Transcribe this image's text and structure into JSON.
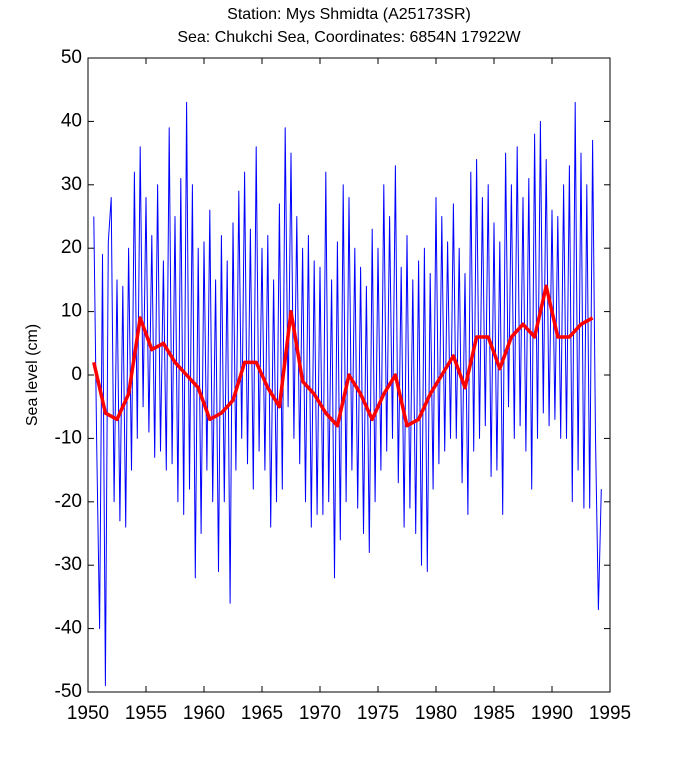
{
  "chart_data": {
    "type": "line",
    "title": "Station: Mys Shmidta (A25173SR)",
    "subtitle": "Sea: Chukchi Sea, Coordinates: 6854N 17922W",
    "y_label": "Sea level (cm)",
    "xlim": [
      1950,
      1995
    ],
    "xticks": [
      1950,
      1955,
      1960,
      1965,
      1970,
      1975,
      1980,
      1985,
      1990,
      1995
    ],
    "ylim": [
      -50,
      50
    ],
    "yticks": [
      -50,
      -40,
      -30,
      -20,
      -10,
      0,
      10,
      20,
      30,
      40,
      50
    ],
    "grid": false,
    "series": [
      {
        "color": "#0000ff",
        "width": 1,
        "x": [
          1950.5,
          1950.75,
          1951,
          1951.25,
          1951.5,
          1951.75,
          1952,
          1952.25,
          1952.5,
          1952.75,
          1953,
          1953.25,
          1953.5,
          1953.75,
          1954,
          1954.25,
          1954.5,
          1954.75,
          1955,
          1955.25,
          1955.5,
          1955.75,
          1956,
          1956.25,
          1956.5,
          1956.75,
          1957,
          1957.25,
          1957.5,
          1957.75,
          1958,
          1958.25,
          1958.5,
          1958.75,
          1959,
          1959.25,
          1959.5,
          1959.75,
          1960,
          1960.25,
          1960.5,
          1960.75,
          1961,
          1961.25,
          1961.5,
          1961.75,
          1962,
          1962.25,
          1962.5,
          1962.75,
          1963,
          1963.25,
          1963.5,
          1963.75,
          1964,
          1964.25,
          1964.5,
          1964.75,
          1965,
          1965.25,
          1965.5,
          1965.75,
          1966,
          1966.25,
          1966.5,
          1966.75,
          1967,
          1967.25,
          1967.5,
          1967.75,
          1968,
          1968.25,
          1968.5,
          1968.75,
          1969,
          1969.25,
          1969.5,
          1969.75,
          1970,
          1970.25,
          1970.5,
          1970.75,
          1971,
          1971.25,
          1971.5,
          1971.75,
          1972,
          1972.25,
          1972.5,
          1972.75,
          1973,
          1973.25,
          1973.5,
          1973.75,
          1974,
          1974.25,
          1974.5,
          1974.75,
          1975,
          1975.25,
          1975.5,
          1975.75,
          1976,
          1976.25,
          1976.5,
          1976.75,
          1977,
          1977.25,
          1977.5,
          1977.75,
          1978,
          1978.25,
          1978.5,
          1978.75,
          1979,
          1979.25,
          1979.5,
          1979.75,
          1980,
          1980.25,
          1980.5,
          1980.75,
          1981,
          1981.25,
          1981.5,
          1981.75,
          1982,
          1982.25,
          1982.5,
          1982.75,
          1983,
          1983.25,
          1983.5,
          1983.75,
          1984,
          1984.25,
          1984.5,
          1984.75,
          1985,
          1985.25,
          1985.5,
          1985.75,
          1986,
          1986.25,
          1986.5,
          1986.75,
          1987,
          1987.25,
          1987.5,
          1987.75,
          1988,
          1988.25,
          1988.5,
          1988.75,
          1989,
          1989.25,
          1989.5,
          1989.75,
          1990,
          1990.25,
          1990.5,
          1990.75,
          1991,
          1991.25,
          1991.5,
          1991.75,
          1992,
          1992.25,
          1992.5,
          1992.75,
          1993,
          1993.25,
          1993.5,
          1993.75,
          1994,
          1994.25
        ],
        "values": [
          25,
          -11,
          -40,
          19,
          -49,
          21,
          28,
          -20,
          15,
          -23,
          14,
          -24,
          20,
          -15,
          32,
          -10,
          36,
          -5,
          28,
          -9,
          22,
          -13,
          30,
          -12,
          18,
          -15,
          39,
          -14,
          25,
          -20,
          31,
          -22,
          43,
          -18,
          30,
          -32,
          20,
          -25,
          21,
          -15,
          26,
          -20,
          15,
          -31,
          22,
          -20,
          18,
          -36,
          24,
          -15,
          29,
          -10,
          32,
          -14,
          23,
          -18,
          36,
          -12,
          20,
          -15,
          22,
          -24,
          15,
          -20,
          27,
          -18,
          39,
          -5,
          35,
          -10,
          25,
          -14,
          20,
          -20,
          22,
          -24,
          18,
          -22,
          17,
          -22,
          32,
          -20,
          15,
          -32,
          21,
          -26,
          30,
          -20,
          28,
          -15,
          20,
          -21,
          17,
          -25,
          14,
          -28,
          23,
          -20,
          20,
          -15,
          30,
          -12,
          25,
          -10,
          33,
          -17,
          17,
          -24,
          22,
          -21,
          15,
          -25,
          18,
          -30,
          20,
          -31,
          16,
          -18,
          28,
          -14,
          25,
          -12,
          21,
          -10,
          27,
          -10,
          20,
          -17,
          16,
          -22,
          32,
          -12,
          34,
          -10,
          28,
          -8,
          30,
          -16,
          24,
          -15,
          21,
          -22,
          35,
          -5,
          30,
          -10,
          36,
          -8,
          28,
          -12,
          31,
          -18,
          38,
          -10,
          40,
          -6,
          34,
          -8,
          26,
          -7,
          25,
          -10,
          30,
          -10,
          33,
          -20,
          43,
          -15,
          35,
          -21,
          30,
          -21,
          37,
          -10,
          -37,
          -18
        ]
      },
      {
        "color": "#ff0000",
        "width": 3.5,
        "x": [
          1950.5,
          1951.5,
          1952.5,
          1953.5,
          1954.5,
          1955.5,
          1956.5,
          1957.5,
          1958.5,
          1959.5,
          1960.5,
          1961.5,
          1962.5,
          1963.5,
          1964.5,
          1965.5,
          1966.5,
          1967.5,
          1968.5,
          1969.5,
          1970.5,
          1971.5,
          1972.5,
          1973.5,
          1974.5,
          1975.5,
          1976.5,
          1977.5,
          1978.5,
          1979.5,
          1980.5,
          1981.5,
          1982.5,
          1983.5,
          1984.5,
          1985.5,
          1986.5,
          1987.5,
          1988.5,
          1989.5,
          1990.5,
          1991.5,
          1992.5,
          1993.5
        ],
        "values": [
          2,
          -6,
          -7,
          -3,
          9,
          4,
          5,
          2,
          0,
          -2,
          -7,
          -6,
          -4,
          2,
          2,
          -2,
          -5,
          10,
          -1,
          -3,
          -6,
          -8,
          0,
          -3,
          -7,
          -3,
          0,
          -8,
          -7,
          -3,
          0,
          3,
          -2,
          6,
          6,
          1,
          6,
          8,
          6,
          14,
          6,
          6,
          8,
          9
        ]
      }
    ]
  }
}
